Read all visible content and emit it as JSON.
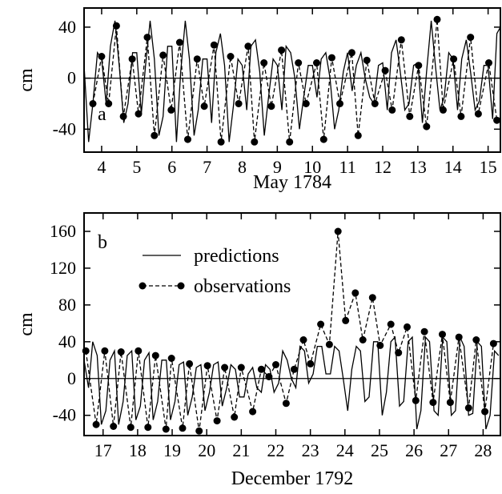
{
  "chart_data": [
    {
      "id": "a",
      "type": "line",
      "panel_label": "a",
      "xlabel": "May 1784",
      "ylabel": "cm",
      "xlim": [
        3.5,
        15.35
      ],
      "ylim": [
        -58,
        55
      ],
      "xticks": [
        4,
        5,
        6,
        7,
        8,
        9,
        10,
        11,
        12,
        13,
        14,
        15
      ],
      "xtick_labels": [
        "4",
        "5",
        "6",
        "7",
        "8",
        "9",
        "10",
        "11",
        "12",
        "13",
        "14",
        "15"
      ],
      "yticks": [
        -40,
        0,
        40
      ],
      "ytick_labels": [
        "-40",
        "0",
        "40"
      ],
      "zero_line": true,
      "series": [
        {
          "style": "solid",
          "x": [
            3.5,
            3.63,
            3.75,
            3.88,
            4.0,
            4.13,
            4.25,
            4.38,
            4.5,
            4.63,
            4.75,
            4.88,
            5.0,
            5.13,
            5.25,
            5.38,
            5.5,
            5.63,
            5.75,
            5.88,
            6.0,
            6.13,
            6.25,
            6.38,
            6.5,
            6.63,
            6.75,
            6.88,
            7.0,
            7.13,
            7.25,
            7.38,
            7.5,
            7.63,
            7.75,
            7.88,
            8.0,
            8.13,
            8.25,
            8.38,
            8.5,
            8.63,
            8.75,
            8.88,
            9.0,
            9.13,
            9.25,
            9.38,
            9.5,
            9.63,
            9.75,
            9.88,
            10.0,
            10.13,
            10.25,
            10.38,
            10.5,
            10.63,
            10.75,
            10.88,
            11.0,
            11.13,
            11.25,
            11.38,
            11.5,
            11.63,
            11.75,
            11.88,
            12.0,
            12.13,
            12.25,
            12.38,
            12.5,
            12.63,
            12.75,
            12.88,
            13.0,
            13.13,
            13.25,
            13.38,
            13.5,
            13.63,
            13.75,
            13.88,
            14.0,
            14.13,
            14.25,
            14.38,
            14.5,
            14.63,
            14.75,
            14.88,
            15.0,
            15.13,
            15.25,
            15.35
          ],
          "y": [
            10,
            -50,
            -20,
            20,
            15,
            -20,
            25,
            45,
            10,
            -35,
            -20,
            20,
            20,
            -28,
            10,
            45,
            15,
            -45,
            -30,
            25,
            25,
            -50,
            5,
            45,
            15,
            -45,
            -25,
            15,
            15,
            -35,
            20,
            35,
            10,
            -50,
            -22,
            15,
            10,
            -25,
            25,
            30,
            5,
            -45,
            -15,
            15,
            10,
            -25,
            25,
            20,
            0,
            -40,
            -15,
            10,
            10,
            -15,
            15,
            20,
            0,
            -40,
            -25,
            5,
            20,
            -10,
            10,
            20,
            0,
            -15,
            -20,
            10,
            12,
            -25,
            20,
            30,
            5,
            -25,
            -20,
            10,
            12,
            -35,
            5,
            45,
            10,
            -25,
            -15,
            20,
            15,
            -25,
            15,
            30,
            5,
            -25,
            -18,
            10,
            10,
            -32,
            35,
            40
          ]
        },
        {
          "style": "dashed-points",
          "x": [
            3.75,
            4.0,
            4.2,
            4.42,
            4.62,
            4.87,
            5.05,
            5.3,
            5.5,
            5.75,
            5.98,
            6.22,
            6.45,
            6.72,
            6.92,
            7.2,
            7.4,
            7.67,
            7.9,
            8.17,
            8.35,
            8.62,
            8.83,
            9.12,
            9.35,
            9.6,
            9.82,
            10.12,
            10.32,
            10.55,
            10.78,
            11.12,
            11.3,
            11.55,
            11.78,
            12.07,
            12.27,
            12.53,
            12.77,
            13.02,
            13.25,
            13.55,
            13.72,
            14.02,
            14.23,
            14.5,
            14.72,
            15.02,
            15.25
          ],
          "y": [
            -20,
            17,
            -20,
            41,
            -30,
            15,
            -28,
            32,
            -45,
            18,
            -25,
            28,
            -48,
            15,
            -22,
            26,
            -50,
            17,
            -20,
            25,
            -50,
            12,
            -22,
            22,
            -50,
            12,
            -20,
            12,
            -48,
            16,
            -20,
            20,
            -45,
            14,
            -20,
            6,
            -25,
            30,
            -30,
            10,
            -38,
            46,
            -25,
            15,
            -30,
            32,
            -28,
            12,
            -33
          ]
        }
      ]
    },
    {
      "id": "b",
      "type": "line",
      "panel_label": "b",
      "xlabel": "December 1792",
      "ylabel": "cm",
      "xlim": [
        16.45,
        28.5
      ],
      "ylim": [
        -62,
        180
      ],
      "xticks": [
        17,
        18,
        19,
        20,
        21,
        22,
        23,
        24,
        25,
        26,
        27,
        28
      ],
      "xtick_labels": [
        "17",
        "18",
        "19",
        "20",
        "21",
        "22",
        "23",
        "24",
        "25",
        "26",
        "27",
        "28"
      ],
      "yticks": [
        -40,
        0,
        40,
        80,
        120,
        160
      ],
      "ytick_labels": [
        "-40",
        "0",
        "40",
        "80",
        "120",
        "160"
      ],
      "zero_line": true,
      "legend": {
        "placement": "upper-middle",
        "entries": [
          {
            "label": "predictions",
            "style": "solid"
          },
          {
            "label": "observations",
            "style": "dashed-points"
          }
        ]
      },
      "series": [
        {
          "style": "solid",
          "x": [
            16.45,
            16.58,
            16.7,
            16.83,
            16.95,
            17.08,
            17.2,
            17.33,
            17.45,
            17.58,
            17.7,
            17.83,
            17.95,
            18.08,
            18.2,
            18.33,
            18.45,
            18.58,
            18.7,
            18.83,
            18.95,
            19.08,
            19.2,
            19.33,
            19.45,
            19.58,
            19.7,
            19.83,
            19.95,
            20.08,
            20.2,
            20.33,
            20.45,
            20.58,
            20.7,
            20.83,
            20.95,
            21.08,
            21.2,
            21.33,
            21.45,
            21.58,
            21.7,
            21.83,
            21.95,
            22.08,
            22.2,
            22.33,
            22.45,
            22.58,
            22.7,
            22.83,
            22.95,
            23.08,
            23.2,
            23.33,
            23.45,
            23.58,
            23.7,
            23.83,
            23.95,
            24.08,
            24.2,
            24.33,
            24.45,
            24.58,
            24.7,
            24.83,
            24.95,
            25.08,
            25.2,
            25.33,
            25.45,
            25.58,
            25.7,
            25.83,
            25.95,
            26.08,
            26.2,
            26.33,
            26.45,
            26.58,
            26.7,
            26.83,
            26.95,
            27.08,
            27.2,
            27.33,
            27.45,
            27.58,
            27.7,
            27.83,
            27.95,
            28.08,
            28.2,
            28.33,
            28.45
          ],
          "y": [
            20,
            -10,
            40,
            25,
            -50,
            -35,
            20,
            30,
            -50,
            -25,
            25,
            30,
            -45,
            -30,
            20,
            28,
            -45,
            -25,
            20,
            20,
            -45,
            -25,
            15,
            18,
            -40,
            -20,
            12,
            15,
            -35,
            -15,
            15,
            18,
            -30,
            -10,
            15,
            10,
            -20,
            -20,
            5,
            12,
            -10,
            -15,
            15,
            10,
            -15,
            -5,
            30,
            20,
            0,
            -10,
            35,
            30,
            -5,
            5,
            35,
            35,
            5,
            5,
            35,
            30,
            0,
            -35,
            10,
            35,
            30,
            -25,
            -20,
            40,
            40,
            -40,
            -15,
            40,
            45,
            -30,
            -25,
            40,
            45,
            -55,
            -35,
            45,
            40,
            -35,
            -40,
            45,
            40,
            -40,
            -35,
            45,
            35,
            -40,
            -38,
            40,
            35,
            -55,
            -40,
            30,
            25
          ]
        },
        {
          "style": "dashed-points",
          "x": [
            16.5,
            16.8,
            17.05,
            17.3,
            17.52,
            17.8,
            18.02,
            18.3,
            18.52,
            18.82,
            18.98,
            19.3,
            19.5,
            19.78,
            20.02,
            20.3,
            20.52,
            20.8,
            21.0,
            21.33,
            21.58,
            21.8,
            22.0,
            22.3,
            22.53,
            22.8,
            23.0,
            23.3,
            23.55,
            23.8,
            24.02,
            24.3,
            24.52,
            24.8,
            25.02,
            25.33,
            25.55,
            25.8,
            26.05,
            26.3,
            26.55,
            26.82,
            27.05,
            27.3,
            27.58,
            27.8,
            28.05,
            28.3
          ],
          "y": [
            30,
            -50,
            30,
            -52,
            29,
            -53,
            30,
            -53,
            25,
            -55,
            22,
            -54,
            16,
            -57,
            14,
            -46,
            12,
            -42,
            12,
            -36,
            10,
            2,
            15,
            -27,
            10,
            42,
            16,
            59,
            37,
            160,
            63,
            93,
            42,
            88,
            36,
            59,
            28,
            56,
            -24,
            51,
            -26,
            48,
            -26,
            45,
            -32,
            42,
            -36,
            38
          ]
        }
      ]
    }
  ]
}
